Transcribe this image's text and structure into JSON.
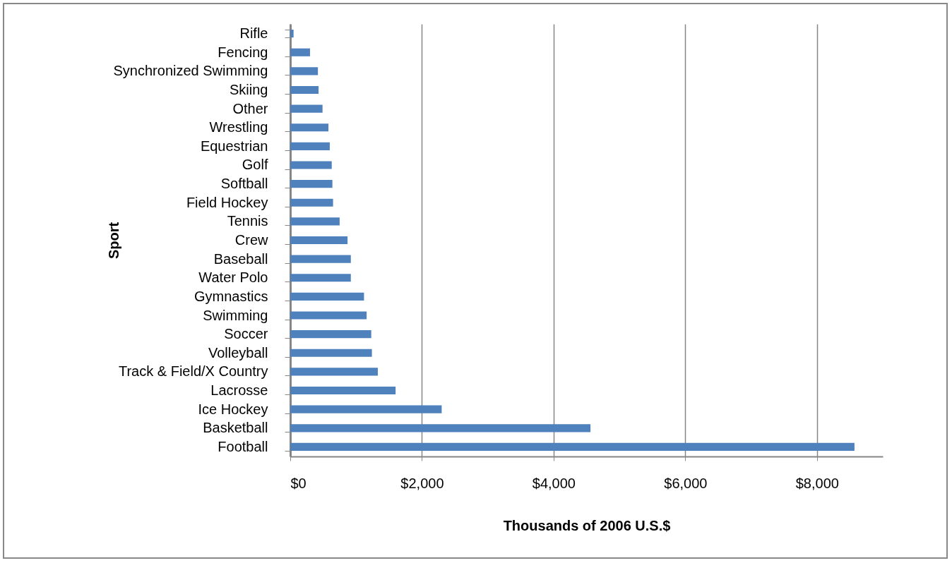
{
  "chart_data": {
    "type": "bar",
    "orientation": "horizontal",
    "xlabel": "Thousands of 2006 U.S.$",
    "ylabel": "Sport",
    "categories": [
      "Rifle",
      "Fencing",
      "Synchronized Swimming",
      "Skiing",
      "Other",
      "Wrestling",
      "Equestrian",
      "Golf",
      "Softball",
      "Field Hockey",
      "Tennis",
      "Crew",
      "Baseball",
      "Water Polo",
      "Gymnastics",
      "Swimming",
      "Soccer",
      "Volleyball",
      "Track & Field/X Country",
      "Lacrosse",
      "Ice Hockey",
      "Basketball",
      "Football"
    ],
    "values": [
      50,
      300,
      420,
      430,
      490,
      580,
      600,
      630,
      640,
      650,
      750,
      870,
      920,
      920,
      1120,
      1160,
      1230,
      1240,
      1330,
      1600,
      2300,
      4560,
      8570
    ],
    "color": "#4f81bd",
    "xlim": [
      0,
      9000
    ],
    "xticks": [
      {
        "value": 0,
        "label": "$0"
      },
      {
        "value": 2000,
        "label": "$2,000"
      },
      {
        "value": 4000,
        "label": "$4,000"
      },
      {
        "value": 6000,
        "label": "$6,000"
      },
      {
        "value": 8000,
        "label": "$8,000"
      }
    ],
    "grid": "x"
  }
}
